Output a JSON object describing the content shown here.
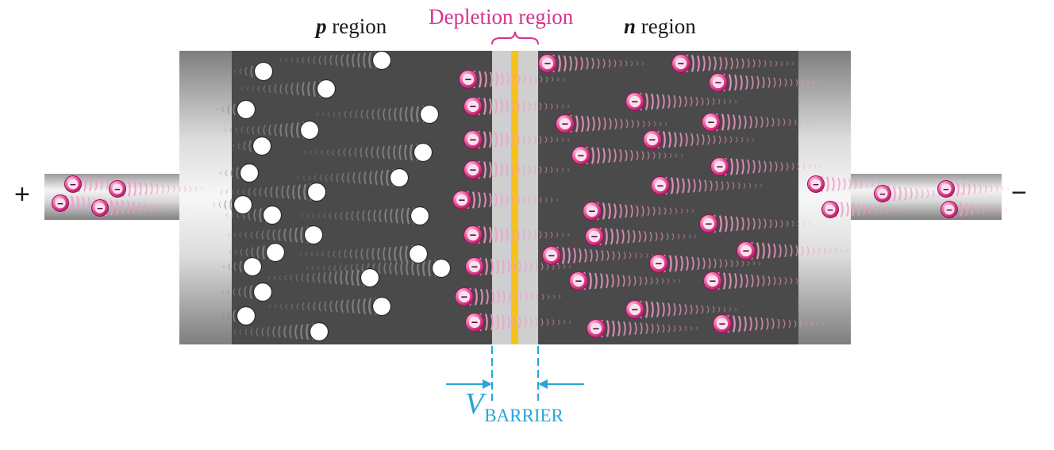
{
  "labels": {
    "p_region_letter": "p",
    "p_region_word": " region",
    "n_region_letter": "n",
    "n_region_word": " region",
    "depletion_region": "Depletion region",
    "plus_terminal": "+",
    "minus_terminal": "−",
    "vbarrier_symbol": "V",
    "vbarrier_subscript": "BARRIER",
    "electron_sign": "−"
  },
  "colors": {
    "semiconductor": "#4a4a4a",
    "electron": "#ee4f9e",
    "electron_trail": "#f29ac5",
    "hole": "#ffffff",
    "hole_trail": "#8c8c8c",
    "depletion_band": "#cfcfcf",
    "junction_line": "#f7c21c",
    "label_magenta": "#d6338f",
    "barrier_blue": "#28a4d8"
  },
  "icons": {
    "hole": "white-circle",
    "electron": "pink-circle-minus"
  }
}
